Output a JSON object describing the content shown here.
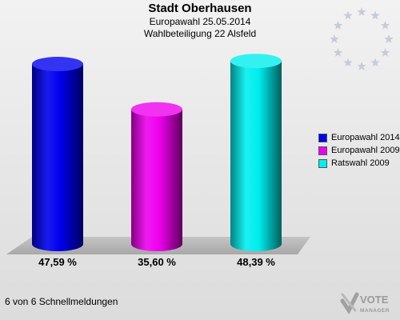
{
  "header": {
    "title": "Stadt Oberhausen",
    "line1": "Europawahl 25.05.2014",
    "line2": "Wahlbeteiligung 22 Alsfeld"
  },
  "chart_data": {
    "type": "bar",
    "title": "Stadt Oberhausen",
    "subtitle": "Europawahl 25.05.2014 / Wahlbeteiligung 22 Alsfeld",
    "categories": [
      "Europawahl 2014",
      "Europawahl 2009",
      "Ratswahl 2009"
    ],
    "values": [
      47.59,
      35.6,
      48.39
    ],
    "value_labels": [
      "47,59 %",
      "35,60 %",
      "48,39 %"
    ],
    "unit": "%",
    "colors": [
      "#0000ee",
      "#ee00ee",
      "#00eeee"
    ],
    "ylim": [
      0,
      55
    ],
    "legend_position": "right",
    "grid": false
  },
  "legend": {
    "items": [
      {
        "label": "Europawahl 2014",
        "color": "#0000ee"
      },
      {
        "label": "Europawahl 2009",
        "color": "#ee00ee"
      },
      {
        "label": "Ratswahl 2009",
        "color": "#00eeee"
      }
    ]
  },
  "footer": {
    "text": "6 von 6 Schnellmeldungen"
  },
  "logo": {
    "name": "votemanager-logo",
    "line1": "VOTE",
    "line2": "MANAGER"
  },
  "decor": {
    "eu_stars_icon": "eu-stars-icon",
    "star_color": "#c8ccd6"
  }
}
